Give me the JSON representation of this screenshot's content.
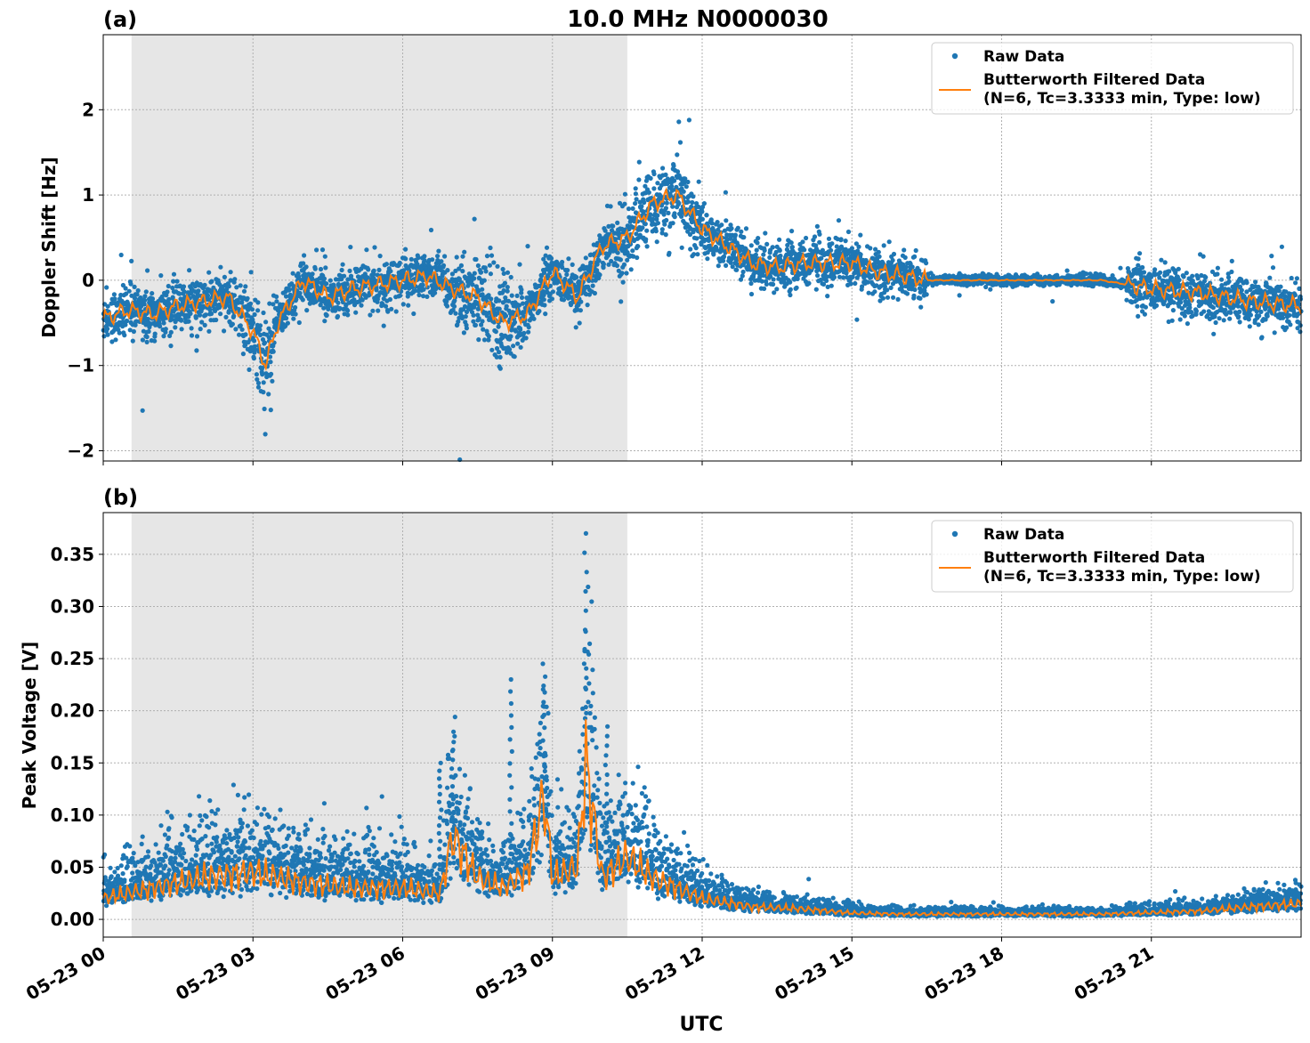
{
  "figure": {
    "title": "10.0 MHz N0000030",
    "xlabel": "UTC"
  },
  "colors": {
    "raw": "#1f77b4",
    "filtered": "#ff7f0e",
    "shade": "#e6e6e6",
    "grid": "#b0b0b0"
  },
  "chart_data": [
    {
      "type": "scatter",
      "panel_label": "(a)",
      "ylabel": "Doppler Shift [Hz]",
      "x_unit": "UTC hours since 05-23 00:00",
      "xlim": [
        "05-23 00:00",
        "05-24 00:00"
      ],
      "ylim": [
        -2.12,
        2.88
      ],
      "yticks": [
        -2,
        -1,
        0,
        1,
        2
      ],
      "ytick_labels": [
        "−2",
        "−1",
        "0",
        "1",
        "2"
      ],
      "xticks": [
        "05-23 00",
        "05-23 03",
        "05-23 06",
        "05-23 09",
        "05-23 12",
        "05-23 15",
        "05-23 18",
        "05-23 21"
      ],
      "shaded_span": [
        "05-23 00:34",
        "05-23 10:30"
      ],
      "grid": true,
      "legend_position": "upper right",
      "series": [
        {
          "name": "Raw Data",
          "kind": "points"
        },
        {
          "name": "Butterworth Filtered Data",
          "name_line2": "(N=6, Tc=3.3333 min, Type: low)",
          "kind": "line"
        }
      ],
      "filtered_trend": {
        "x": [
          "00:00",
          "00:30",
          "01:00",
          "01:30",
          "02:00",
          "02:30",
          "03:00",
          "03:15",
          "03:30",
          "04:00",
          "04:30",
          "05:00",
          "05:30",
          "06:00",
          "06:30",
          "07:00",
          "07:30",
          "08:00",
          "08:30",
          "09:00",
          "09:30",
          "10:00",
          "10:30",
          "11:00",
          "11:30",
          "12:00",
          "12:30",
          "13:00",
          "13:30",
          "14:00",
          "14:30",
          "15:00",
          "15:30",
          "16:00",
          "16:30",
          "17:00",
          "18:00",
          "19:00",
          "20:00",
          "21:00",
          "22:00",
          "23:00",
          "24:00"
        ],
        "y": [
          -0.45,
          -0.35,
          -0.4,
          -0.3,
          -0.25,
          -0.2,
          -0.6,
          -1.0,
          -0.5,
          0.0,
          -0.2,
          -0.1,
          -0.05,
          0.0,
          0.05,
          -0.1,
          -0.2,
          -0.5,
          -0.4,
          0.1,
          -0.2,
          0.4,
          0.5,
          0.9,
          1.0,
          0.6,
          0.4,
          0.2,
          0.15,
          0.2,
          0.2,
          0.2,
          0.1,
          0.05,
          0.0,
          0.0,
          0.0,
          0.0,
          0.0,
          -0.1,
          -0.15,
          -0.25,
          -0.3
        ]
      }
    },
    {
      "type": "scatter",
      "panel_label": "(b)",
      "ylabel": "Peak Voltage [V]",
      "x_unit": "UTC hours since 05-23 00:00",
      "xlim": [
        "05-23 00:00",
        "05-24 00:00"
      ],
      "ylim": [
        -0.017,
        0.39
      ],
      "yticks": [
        0.0,
        0.05,
        0.1,
        0.15,
        0.2,
        0.25,
        0.3,
        0.35
      ],
      "ytick_labels": [
        "0.00",
        "0.05",
        "0.10",
        "0.15",
        "0.20",
        "0.25",
        "0.30",
        "0.35"
      ],
      "xticks": [
        "05-23 00",
        "05-23 03",
        "05-23 06",
        "05-23 09",
        "05-23 12",
        "05-23 15",
        "05-23 18",
        "05-23 21"
      ],
      "shaded_span": [
        "05-23 00:34",
        "05-23 10:30"
      ],
      "grid": true,
      "legend_position": "upper right",
      "series": [
        {
          "name": "Raw Data",
          "kind": "points"
        },
        {
          "name": "Butterworth Filtered Data",
          "name_line2": "(N=6, Tc=3.3333 min, Type: low)",
          "kind": "line"
        }
      ],
      "filtered_trend": {
        "x": [
          "00:00",
          "01:00",
          "02:00",
          "03:00",
          "04:00",
          "05:00",
          "06:00",
          "06:45",
          "07:00",
          "07:30",
          "08:00",
          "08:30",
          "08:50",
          "09:00",
          "09:30",
          "09:40",
          "10:00",
          "10:30",
          "11:00",
          "11:30",
          "12:00",
          "13:00",
          "14:00",
          "15:00",
          "16:00",
          "18:00",
          "20:00",
          "22:00",
          "23:00",
          "24:00"
        ],
        "y": [
          0.02,
          0.03,
          0.04,
          0.045,
          0.035,
          0.03,
          0.03,
          0.025,
          0.08,
          0.04,
          0.03,
          0.045,
          0.12,
          0.04,
          0.05,
          0.15,
          0.04,
          0.06,
          0.04,
          0.03,
          0.02,
          0.012,
          0.01,
          0.006,
          0.005,
          0.005,
          0.005,
          0.008,
          0.012,
          0.015
        ]
      },
      "spikes": [
        {
          "x": "06:45",
          "y": 0.15
        },
        {
          "x": "07:00",
          "y": 0.17
        },
        {
          "x": "08:10",
          "y": 0.23
        },
        {
          "x": "08:50",
          "y": 0.245
        },
        {
          "x": "09:40",
          "y": 0.37
        },
        {
          "x": "10:05",
          "y": 0.185
        }
      ]
    }
  ]
}
